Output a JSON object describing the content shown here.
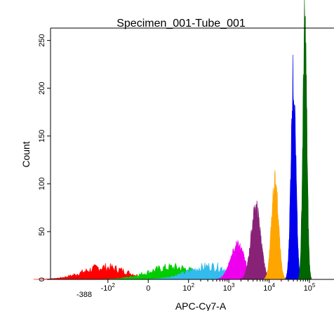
{
  "chart_data": {
    "type": "area",
    "title": "Specimen_001-Tube_001",
    "xlabel": "APC-Cy7-A",
    "ylabel": "Count",
    "x_scale": "biexponential",
    "ylim": [
      0,
      260
    ],
    "grid": false,
    "y_ticks": [
      {
        "value": 0,
        "label": "0"
      },
      {
        "value": 50,
        "label": "50"
      },
      {
        "value": 100,
        "label": "100"
      },
      {
        "value": 150,
        "label": "150"
      },
      {
        "value": 200,
        "label": "200"
      },
      {
        "value": 250,
        "label": "250"
      }
    ],
    "x_ticks": [
      {
        "value": -388,
        "base": "-388",
        "exp": ""
      },
      {
        "value": -100,
        "base": "-10",
        "exp": "2"
      },
      {
        "value": 0,
        "base": "0",
        "exp": ""
      },
      {
        "value": 100,
        "base": "10",
        "exp": "2"
      },
      {
        "value": 1000,
        "base": "10",
        "exp": "3"
      },
      {
        "value": 10000,
        "base": "10",
        "exp": "4"
      },
      {
        "value": 100000,
        "base": "10",
        "exp": "5"
      }
    ],
    "series": [
      {
        "color": "#ff0000",
        "peak_x": -120,
        "peak": 14,
        "spread": 0.55,
        "noise": true
      },
      {
        "color": "#00cc00",
        "peak_x": 60,
        "peak": 14,
        "spread": 0.6,
        "noise": true
      },
      {
        "color": "#33bbee",
        "peak_x": 350,
        "peak": 15,
        "spread": 0.55,
        "noise": true
      },
      {
        "color": "#ee00ee",
        "peak_x": 1650,
        "peak": 36,
        "spread": 0.17,
        "noise": false
      },
      {
        "color": "#882277",
        "peak_x": 4700,
        "peak": 74,
        "spread": 0.12,
        "noise": false
      },
      {
        "color": "#ffa500",
        "peak_x": 14000,
        "peak": 102,
        "spread": 0.085,
        "noise": false
      },
      {
        "color": "#0000ee",
        "peak_x": 40000,
        "peak": 210,
        "spread": 0.06,
        "noise": false
      },
      {
        "color": "#006600",
        "peak_x": 77000,
        "peak": 262,
        "spread": 0.05,
        "noise": false
      }
    ]
  }
}
